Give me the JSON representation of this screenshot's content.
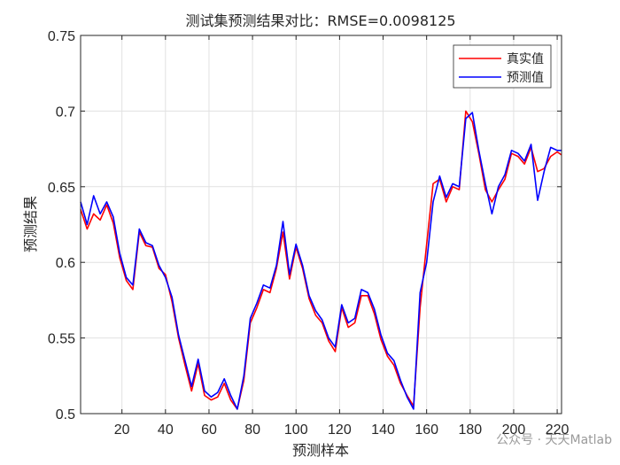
{
  "chart_data": {
    "type": "line",
    "title": "测试集预测结果对比：RMSE=0.0098125",
    "xlabel": "预测样本",
    "ylabel": "预测结果",
    "xlim": [
      1,
      222
    ],
    "ylim": [
      0.5,
      0.75
    ],
    "xticks": [
      20,
      40,
      60,
      80,
      100,
      120,
      140,
      160,
      180,
      200,
      220
    ],
    "xtick_labels": [
      "20",
      "40",
      "60",
      "80",
      "100",
      "120",
      "140",
      "160",
      "180",
      "200",
      "220"
    ],
    "yticks": [
      0.5,
      0.55,
      0.6,
      0.65,
      0.7,
      0.75
    ],
    "ytick_labels": [
      "0.5",
      "0.55",
      "0.6",
      "0.65",
      "0.7",
      "0.75"
    ],
    "grid": true,
    "legend_position": "top-right",
    "x": [
      1,
      4,
      7,
      10,
      13,
      16,
      19,
      22,
      25,
      28,
      31,
      34,
      37,
      40,
      43,
      46,
      49,
      52,
      55,
      58,
      61,
      64,
      67,
      70,
      73,
      76,
      79,
      82,
      85,
      88,
      91,
      94,
      97,
      100,
      103,
      106,
      109,
      112,
      115,
      118,
      121,
      124,
      127,
      130,
      133,
      136,
      139,
      142,
      145,
      148,
      151,
      154,
      157,
      160,
      163,
      166,
      169,
      172,
      175,
      178,
      181,
      184,
      187,
      190,
      193,
      196,
      199,
      202,
      205,
      208,
      211,
      214,
      217,
      220,
      222
    ],
    "series": [
      {
        "name": "真实值",
        "color": "#ff0000",
        "values": [
          0.635,
          0.622,
          0.632,
          0.628,
          0.638,
          0.626,
          0.603,
          0.588,
          0.582,
          0.62,
          0.611,
          0.61,
          0.596,
          0.592,
          0.574,
          0.55,
          0.532,
          0.515,
          0.533,
          0.512,
          0.509,
          0.511,
          0.52,
          0.509,
          0.503,
          0.522,
          0.56,
          0.57,
          0.582,
          0.58,
          0.596,
          0.62,
          0.589,
          0.61,
          0.596,
          0.576,
          0.565,
          0.56,
          0.548,
          0.541,
          0.57,
          0.557,
          0.56,
          0.578,
          0.578,
          0.566,
          0.549,
          0.538,
          0.532,
          0.52,
          0.512,
          0.505,
          0.57,
          0.612,
          0.652,
          0.655,
          0.64,
          0.65,
          0.648,
          0.7,
          0.693,
          0.672,
          0.648,
          0.64,
          0.648,
          0.655,
          0.672,
          0.67,
          0.665,
          0.676,
          0.66,
          0.662,
          0.67,
          0.673,
          0.671
        ]
      },
      {
        "name": "预测值",
        "color": "#0000ff",
        "values": [
          0.64,
          0.625,
          0.644,
          0.632,
          0.64,
          0.63,
          0.606,
          0.59,
          0.585,
          0.622,
          0.613,
          0.611,
          0.598,
          0.59,
          0.577,
          0.552,
          0.535,
          0.518,
          0.536,
          0.515,
          0.511,
          0.514,
          0.523,
          0.512,
          0.503,
          0.525,
          0.563,
          0.573,
          0.585,
          0.583,
          0.598,
          0.627,
          0.592,
          0.612,
          0.598,
          0.578,
          0.568,
          0.562,
          0.55,
          0.544,
          0.572,
          0.56,
          0.563,
          0.582,
          0.58,
          0.569,
          0.552,
          0.54,
          0.535,
          0.522,
          0.511,
          0.503,
          0.58,
          0.6,
          0.64,
          0.657,
          0.643,
          0.652,
          0.65,
          0.695,
          0.699,
          0.674,
          0.652,
          0.632,
          0.65,
          0.658,
          0.674,
          0.672,
          0.667,
          0.678,
          0.641,
          0.66,
          0.676,
          0.674,
          0.674
        ]
      }
    ]
  },
  "watermark": "公众号 · 天天Matlab"
}
